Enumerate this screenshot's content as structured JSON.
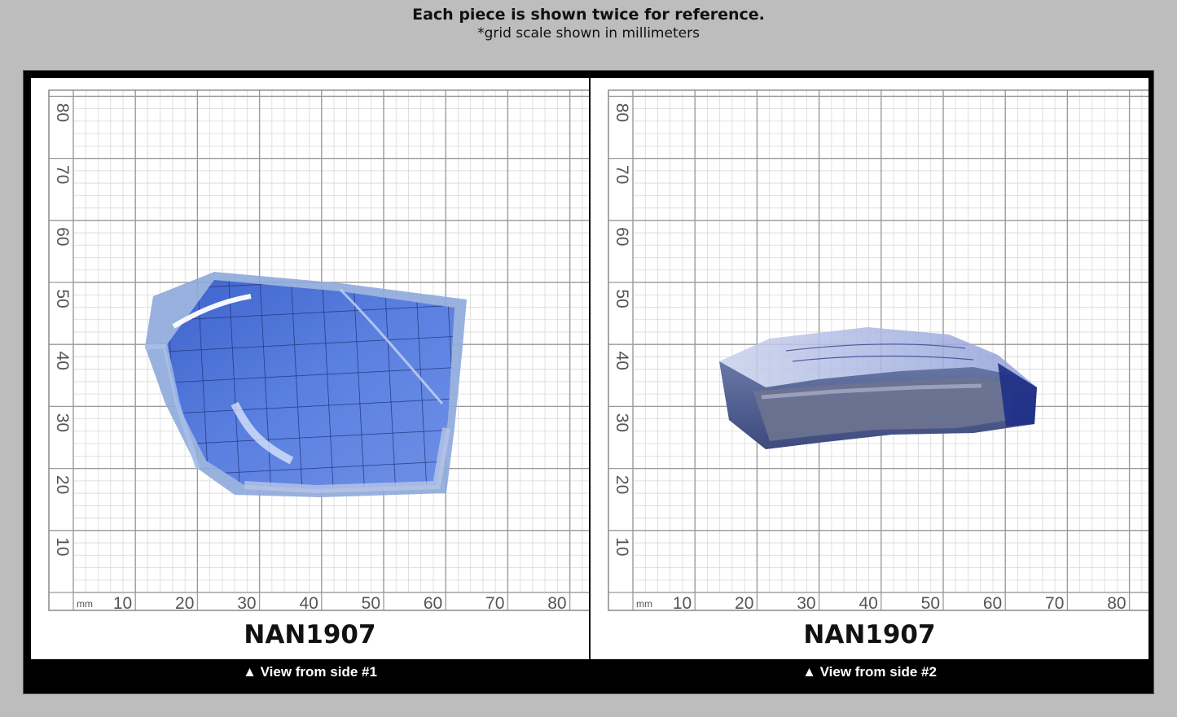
{
  "header": {
    "title": "Each piece is shown twice for reference.",
    "subtitle": "*grid scale shown in millimeters"
  },
  "grid": {
    "unit_label": "mm",
    "x_ticks": [
      "10",
      "20",
      "30",
      "40",
      "50",
      "60",
      "70",
      "80"
    ],
    "y_ticks": [
      "10",
      "20",
      "30",
      "40",
      "50",
      "60",
      "70",
      "80"
    ]
  },
  "panels": [
    {
      "code": "NAN1907",
      "caption": "▲ View from side #1"
    },
    {
      "code": "NAN1907",
      "caption": "▲ View from side #2"
    }
  ],
  "colors": {
    "background": "#bdbdbd",
    "frame": "#000000",
    "stone_blue": "#4f73d6",
    "stone_dark": "#1e2f86"
  }
}
